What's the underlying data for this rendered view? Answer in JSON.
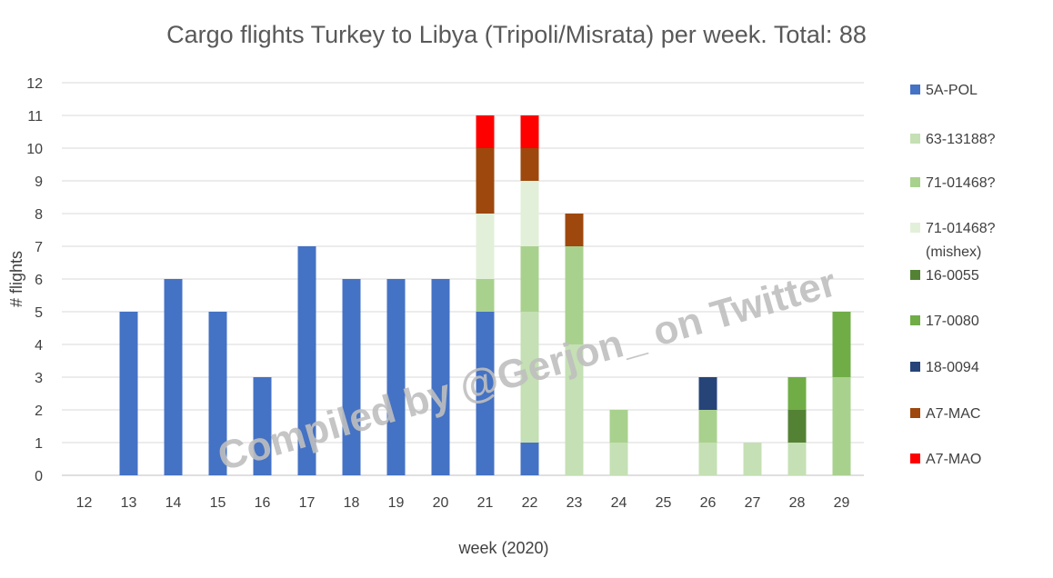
{
  "chart_data": {
    "type": "bar",
    "stacked": true,
    "title": "Cargo flights Turkey to Libya (Tripoli/Misrata) per week. Total: 88",
    "xlabel": "week (2020)",
    "ylabel": "# flights",
    "ylim": [
      0,
      12
    ],
    "yticks": [
      0,
      1,
      2,
      3,
      4,
      5,
      6,
      7,
      8,
      9,
      10,
      11,
      12
    ],
    "grid": true,
    "legend_position": "right",
    "categories": [
      "12",
      "13",
      "14",
      "15",
      "16",
      "17",
      "18",
      "19",
      "20",
      "21",
      "22",
      "23",
      "24",
      "25",
      "26",
      "27",
      "28",
      "29"
    ],
    "series": [
      {
        "name": "5A-POL",
        "color": "#4472C4",
        "values": [
          0,
          5,
          6,
          5,
          3,
          7,
          6,
          6,
          6,
          5,
          1,
          0,
          0,
          0,
          0,
          0,
          0,
          0
        ]
      },
      {
        "name": "63-13188?",
        "color": "#C5E0B4",
        "values": [
          0,
          0,
          0,
          0,
          0,
          0,
          0,
          0,
          0,
          0,
          4,
          4,
          1,
          0,
          1,
          1,
          1,
          0
        ]
      },
      {
        "name": "71-01468?",
        "color": "#A9D18E",
        "values": [
          0,
          0,
          0,
          0,
          0,
          0,
          0,
          0,
          0,
          1,
          2,
          3,
          1,
          0,
          1,
          0,
          0,
          3
        ]
      },
      {
        "name": "71-01468? (mishex)",
        "color": "#E2F0D9",
        "values": [
          0,
          0,
          0,
          0,
          0,
          0,
          0,
          0,
          0,
          2,
          2,
          0,
          0,
          0,
          0,
          0,
          0,
          0
        ]
      },
      {
        "name": "16-0055",
        "color": "#548235",
        "values": [
          0,
          0,
          0,
          0,
          0,
          0,
          0,
          0,
          0,
          0,
          0,
          0,
          0,
          0,
          0,
          0,
          1,
          0
        ]
      },
      {
        "name": "17-0080",
        "color": "#70AD47",
        "values": [
          0,
          0,
          0,
          0,
          0,
          0,
          0,
          0,
          0,
          0,
          0,
          0,
          0,
          0,
          0,
          0,
          1,
          2
        ]
      },
      {
        "name": "18-0094",
        "color": "#264478",
        "values": [
          0,
          0,
          0,
          0,
          0,
          0,
          0,
          0,
          0,
          0,
          0,
          0,
          0,
          0,
          1,
          0,
          0,
          0
        ]
      },
      {
        "name": "A7-MAC",
        "color": "#9E480E",
        "values": [
          0,
          0,
          0,
          0,
          0,
          0,
          0,
          0,
          0,
          2,
          1,
          1,
          0,
          0,
          0,
          0,
          0,
          0
        ]
      },
      {
        "name": "A7-MAO",
        "color": "#FF0000",
        "values": [
          0,
          0,
          0,
          0,
          0,
          0,
          0,
          0,
          0,
          1,
          1,
          0,
          0,
          0,
          0,
          0,
          0,
          0
        ]
      }
    ]
  },
  "legend_lines": [
    [
      "5A-POL"
    ],
    [
      "63-13188?"
    ],
    [
      "71-01468?"
    ],
    [
      "71-01468?",
      "(mishex)"
    ],
    [
      "16-0055"
    ],
    [
      "17-0080"
    ],
    [
      "18-0094"
    ],
    [
      "A7-MAC"
    ],
    [
      "A7-MAO"
    ]
  ],
  "watermark": "Compiled by @Gerjon_ on Twitter"
}
